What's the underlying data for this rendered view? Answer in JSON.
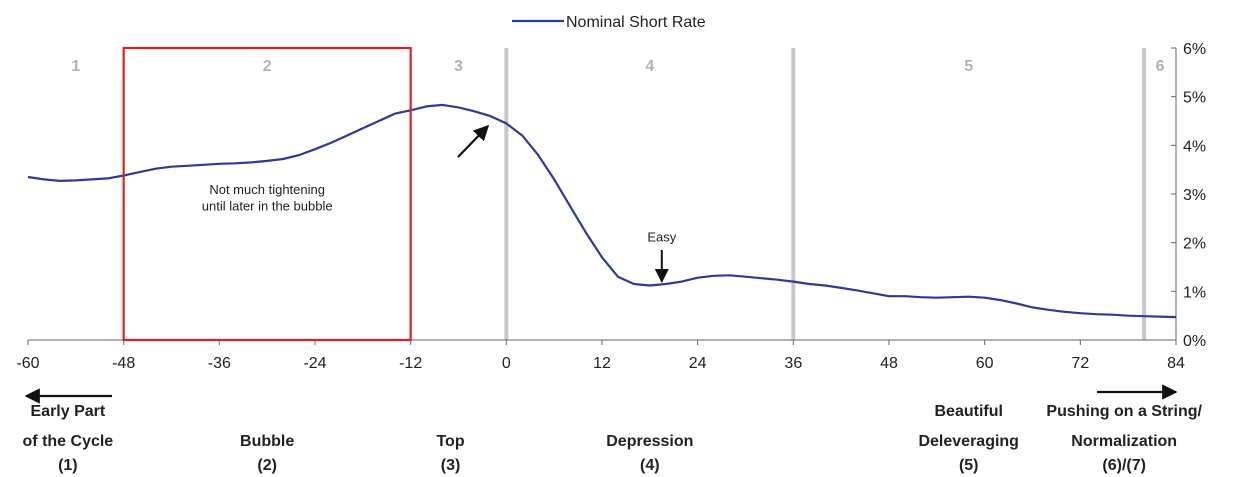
{
  "chart_data": {
    "type": "line",
    "series": [
      {
        "name": "Nominal Short Rate",
        "color": "#2e3a97",
        "x": [
          -60,
          -58,
          -56,
          -54,
          -52,
          -50,
          -48,
          -46,
          -44,
          -42,
          -40,
          -38,
          -36,
          -34,
          -32,
          -30,
          -28,
          -26,
          -24,
          -22,
          -20,
          -18,
          -16,
          -14,
          -12,
          -10,
          -8,
          -6,
          -4,
          -2,
          0,
          2,
          4,
          6,
          8,
          10,
          12,
          14,
          16,
          18,
          20,
          22,
          24,
          26,
          28,
          30,
          32,
          34,
          36,
          38,
          40,
          42,
          44,
          46,
          48,
          50,
          52,
          54,
          56,
          58,
          60,
          62,
          64,
          66,
          68,
          70,
          72,
          74,
          76,
          78,
          80,
          82,
          84
        ],
        "y": [
          3.35,
          3.3,
          3.27,
          3.28,
          3.3,
          3.32,
          3.38,
          3.45,
          3.52,
          3.56,
          3.58,
          3.6,
          3.62,
          3.63,
          3.65,
          3.68,
          3.72,
          3.8,
          3.92,
          4.05,
          4.2,
          4.35,
          4.5,
          4.65,
          4.72,
          4.8,
          4.83,
          4.78,
          4.7,
          4.6,
          4.45,
          4.2,
          3.8,
          3.3,
          2.75,
          2.2,
          1.7,
          1.3,
          1.15,
          1.12,
          1.15,
          1.2,
          1.28,
          1.32,
          1.33,
          1.3,
          1.27,
          1.24,
          1.2,
          1.15,
          1.12,
          1.07,
          1.02,
          0.96,
          0.9,
          0.9,
          0.88,
          0.87,
          0.88,
          0.89,
          0.87,
          0.82,
          0.75,
          0.67,
          0.62,
          0.58,
          0.55,
          0.53,
          0.52,
          0.5,
          0.49,
          0.48,
          0.47
        ]
      }
    ],
    "xlim": [
      -60,
      84
    ],
    "ylim": [
      0,
      6
    ],
    "x_ticks": [
      {
        "value": -60,
        "label": "-60"
      },
      {
        "value": -48,
        "label": "-48"
      },
      {
        "value": -36,
        "label": "-36"
      },
      {
        "value": -24,
        "label": "-24"
      },
      {
        "value": -12,
        "label": "-12"
      },
      {
        "value": 0,
        "label": "0"
      },
      {
        "value": 12,
        "label": "12"
      },
      {
        "value": 24,
        "label": "24"
      },
      {
        "value": 36,
        "label": "36"
      },
      {
        "value": 48,
        "label": "48"
      },
      {
        "value": 60,
        "label": "60"
      },
      {
        "value": 72,
        "label": "72"
      },
      {
        "value": 84,
        "label": "84"
      }
    ],
    "y_ticks": [
      {
        "value": 0,
        "label": "0%"
      },
      {
        "value": 1,
        "label": "1%"
      },
      {
        "value": 2,
        "label": "2%"
      },
      {
        "value": 3,
        "label": "3%"
      },
      {
        "value": 4,
        "label": "4%"
      },
      {
        "value": 5,
        "label": "5%"
      },
      {
        "value": 6,
        "label": "6%"
      }
    ],
    "legend": {
      "position": "top-center",
      "entries": [
        "Nominal Short Rate"
      ]
    },
    "phase_dividers": [
      0,
      36,
      80
    ],
    "phase_numbers": [
      {
        "x": -54,
        "label": "1"
      },
      {
        "x": -30,
        "label": "2"
      },
      {
        "x": -6,
        "label": "3"
      },
      {
        "x": 18,
        "label": "4"
      },
      {
        "x": 58,
        "label": "5"
      },
      {
        "x": 82,
        "label": "6"
      }
    ],
    "highlight_box": {
      "x_start": -48,
      "x_end": -12,
      "color": "#e02020"
    },
    "annotations": [
      {
        "x": -30,
        "y": 3.0,
        "text": "Not much tightening"
      },
      {
        "x": -30,
        "y": 2.66,
        "text": "until later in the bubble"
      },
      {
        "x": 19.5,
        "y": 2.02,
        "text": "Easy"
      }
    ],
    "stage_labels": [
      {
        "x": -55,
        "lines": [
          "Early Part",
          "of the Cycle",
          "(1)"
        ]
      },
      {
        "x": -30,
        "lines": [
          "Bubble",
          "(2)"
        ]
      },
      {
        "x": -7,
        "lines": [
          "Top",
          "(3)"
        ]
      },
      {
        "x": 18,
        "lines": [
          "Depression",
          "(4)"
        ]
      },
      {
        "x": 58,
        "lines": [
          "Beautiful",
          "Deleveraging",
          "(5)"
        ]
      },
      {
        "x": 77.5,
        "lines": [
          "Pushing on a String/",
          "Normalization",
          "(6)/(7)"
        ]
      }
    ]
  }
}
